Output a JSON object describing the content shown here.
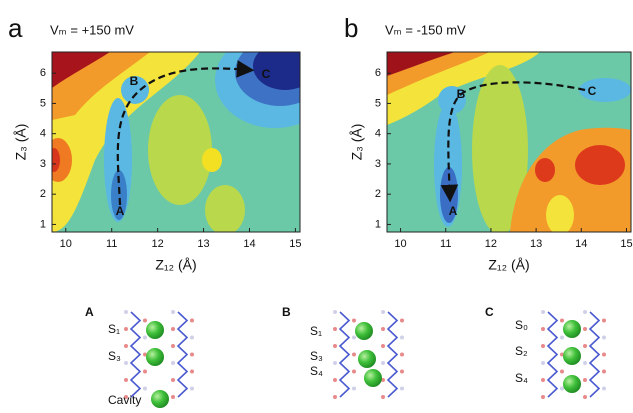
{
  "chart_data": [
    {
      "type": "contour",
      "panel": "a",
      "title": "Vₘ = +150 mV",
      "x_label": "Z₁₂ (Å)",
      "y_label": "Z₃ (Å)",
      "xlim": [
        9.7,
        15.1
      ],
      "ylim": [
        0.75,
        6.7
      ],
      "xticks": [
        10,
        11,
        12,
        13,
        14,
        15
      ],
      "yticks": [
        1,
        2,
        3,
        4,
        5,
        6
      ],
      "path_labels": [
        "A",
        "B",
        "C"
      ]
    },
    {
      "type": "contour",
      "panel": "b",
      "title": "Vₘ = -150 mV",
      "x_label": "Z₁₂ (Å)",
      "y_label": "Z₃ (Å)",
      "xlim": [
        9.7,
        15.1
      ],
      "ylim": [
        0.75,
        6.7
      ],
      "xticks": [
        10,
        11,
        12,
        13,
        14,
        15
      ],
      "yticks": [
        1,
        2,
        3,
        4,
        5,
        6
      ],
      "path_labels": [
        "A",
        "B",
        "C"
      ]
    }
  ],
  "structures": [
    {
      "label": "A",
      "sites": [
        "S₁",
        "S₃",
        "Cavity"
      ]
    },
    {
      "label": "B",
      "sites": [
        "S₁",
        "S₃",
        "S₄"
      ]
    },
    {
      "label": "C",
      "sites": [
        "S₀",
        "S₂",
        "S₄"
      ]
    }
  ]
}
